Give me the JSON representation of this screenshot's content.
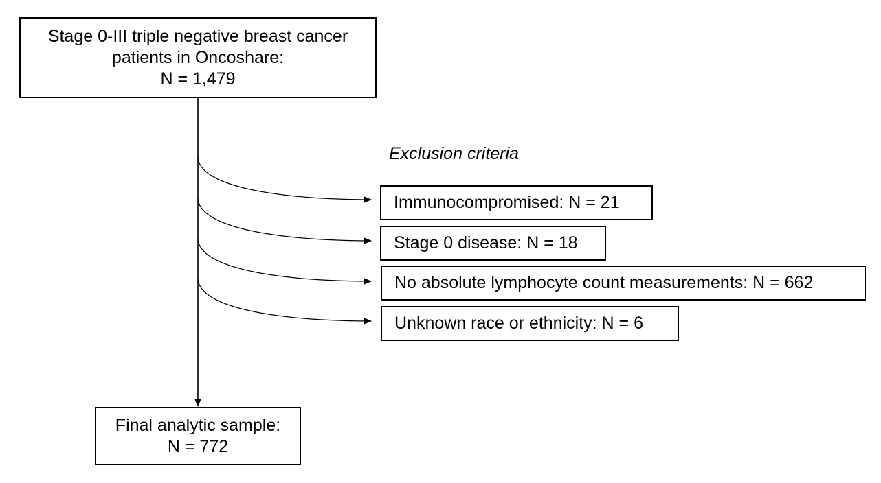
{
  "source_box": {
    "lines": [
      "Stage 0-III triple negative breast cancer",
      "patients in Oncoshare:",
      "N = 1,479"
    ]
  },
  "exclusion": {
    "heading": "Exclusion criteria",
    "items": [
      "Immunocompromised: N = 21",
      "Stage 0 disease: N = 18",
      "No absolute lymphocyte count measurements: N = 662",
      "Unknown race or ethnicity: N = 6"
    ]
  },
  "final_box": {
    "lines": [
      "Final analytic sample:",
      "N = 772"
    ]
  },
  "colors": {
    "stroke": "#000000",
    "background": "#ffffff"
  }
}
